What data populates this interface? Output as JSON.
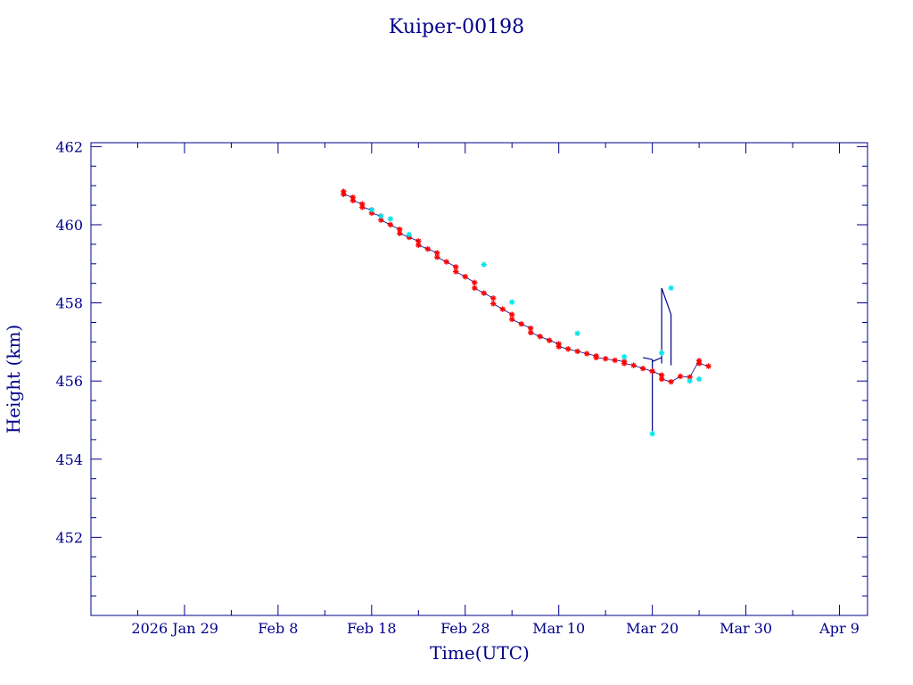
{
  "chart_data": {
    "type": "scatter",
    "title": "Kuiper-00198",
    "xlabel": "Time(UTC)",
    "ylabel": "Height (km)",
    "xlim": [
      "2026-01-19",
      "2026-04-12"
    ],
    "ylim": [
      450.0,
      462.1
    ],
    "x_tick_labels": [
      {
        "date": "2026-01-29",
        "label": "2026 Jan 29"
      },
      {
        "date": "2026-02-08",
        "label": "Feb  8"
      },
      {
        "date": "2026-02-18",
        "label": "Feb 18"
      },
      {
        "date": "2026-02-28",
        "label": "Feb 28"
      },
      {
        "date": "2026-03-10",
        "label": "Mar 10"
      },
      {
        "date": "2026-03-20",
        "label": "Mar 20"
      },
      {
        "date": "2026-03-30",
        "label": "Mar 30"
      },
      {
        "date": "2026-04-09",
        "label": "Apr  9"
      }
    ],
    "y_tick_labels": [
      "452",
      "454",
      "456",
      "458",
      "460",
      "462"
    ],
    "y_ticks": [
      452,
      454,
      456,
      458,
      460,
      462
    ],
    "grid": false,
    "series": [
      {
        "marker": "red-star",
        "color": "#ff0000",
        "x": [
          "2026-02-15",
          "2026-02-15",
          "2026-02-16",
          "2026-02-16",
          "2026-02-17",
          "2026-02-17",
          "2026-02-18",
          "2026-02-18",
          "2026-02-19",
          "2026-02-19",
          "2026-02-20",
          "2026-02-21",
          "2026-02-21",
          "2026-02-22",
          "2026-02-23",
          "2026-02-23",
          "2026-02-24",
          "2026-02-25",
          "2026-02-25",
          "2026-02-26",
          "2026-02-27",
          "2026-02-27",
          "2026-02-28",
          "2026-03-01",
          "2026-03-01",
          "2026-03-02",
          "2026-03-03",
          "2026-03-03",
          "2026-03-04",
          "2026-03-05",
          "2026-03-05",
          "2026-03-06",
          "2026-03-07",
          "2026-03-07",
          "2026-03-08",
          "2026-03-09",
          "2026-03-10",
          "2026-03-10",
          "2026-03-11",
          "2026-03-12",
          "2026-03-13",
          "2026-03-14",
          "2026-03-14",
          "2026-03-15",
          "2026-03-16",
          "2026-03-17",
          "2026-03-17",
          "2026-03-18",
          "2026-03-19",
          "2026-03-20",
          "2026-03-21",
          "2026-03-21",
          "2026-03-22",
          "2026-03-23",
          "2026-03-24",
          "2026-03-25",
          "2026-03-25",
          "2026-03-26"
        ],
        "y": [
          460.85,
          460.78,
          460.7,
          460.62,
          460.53,
          460.45,
          460.38,
          460.3,
          460.22,
          460.12,
          460.0,
          459.88,
          459.78,
          459.68,
          459.58,
          459.48,
          459.38,
          459.28,
          459.17,
          459.05,
          458.92,
          458.8,
          458.67,
          458.52,
          458.38,
          458.25,
          458.12,
          457.98,
          457.84,
          457.7,
          457.58,
          457.46,
          457.35,
          457.24,
          457.14,
          457.04,
          456.95,
          456.88,
          456.82,
          456.76,
          456.7,
          456.64,
          456.6,
          456.57,
          456.53,
          456.5,
          456.45,
          456.4,
          456.32,
          456.25,
          456.15,
          456.05,
          455.98,
          456.12,
          456.1,
          456.52,
          456.45,
          456.38
        ]
      },
      {
        "marker": "cyan-star",
        "color": "#00e5ee",
        "x": [
          "2026-02-18",
          "2026-02-19",
          "2026-02-20",
          "2026-02-22",
          "2026-03-02",
          "2026-03-05",
          "2026-03-12",
          "2026-03-17",
          "2026-03-20",
          "2026-03-21",
          "2026-03-22",
          "2026-03-24",
          "2026-03-25"
        ],
        "y": [
          460.38,
          460.22,
          460.15,
          459.75,
          458.98,
          458.02,
          457.22,
          456.62,
          454.65,
          456.72,
          458.38,
          456.0,
          456.05
        ]
      }
    ],
    "line": {
      "color": "#00008b",
      "note_spikes": true,
      "x": [
        "2026-03-19",
        "2026-03-20",
        "2026-03-20",
        "2026-03-20",
        "2026-03-20",
        "2026-03-21",
        "2026-03-21",
        "2026-03-21",
        "2026-03-21",
        "2026-03-22",
        "2026-03-22"
      ],
      "y": [
        456.6,
        456.55,
        454.65,
        455.4,
        456.5,
        456.6,
        456.72,
        456.45,
        458.38,
        457.7,
        456.4
      ]
    }
  }
}
